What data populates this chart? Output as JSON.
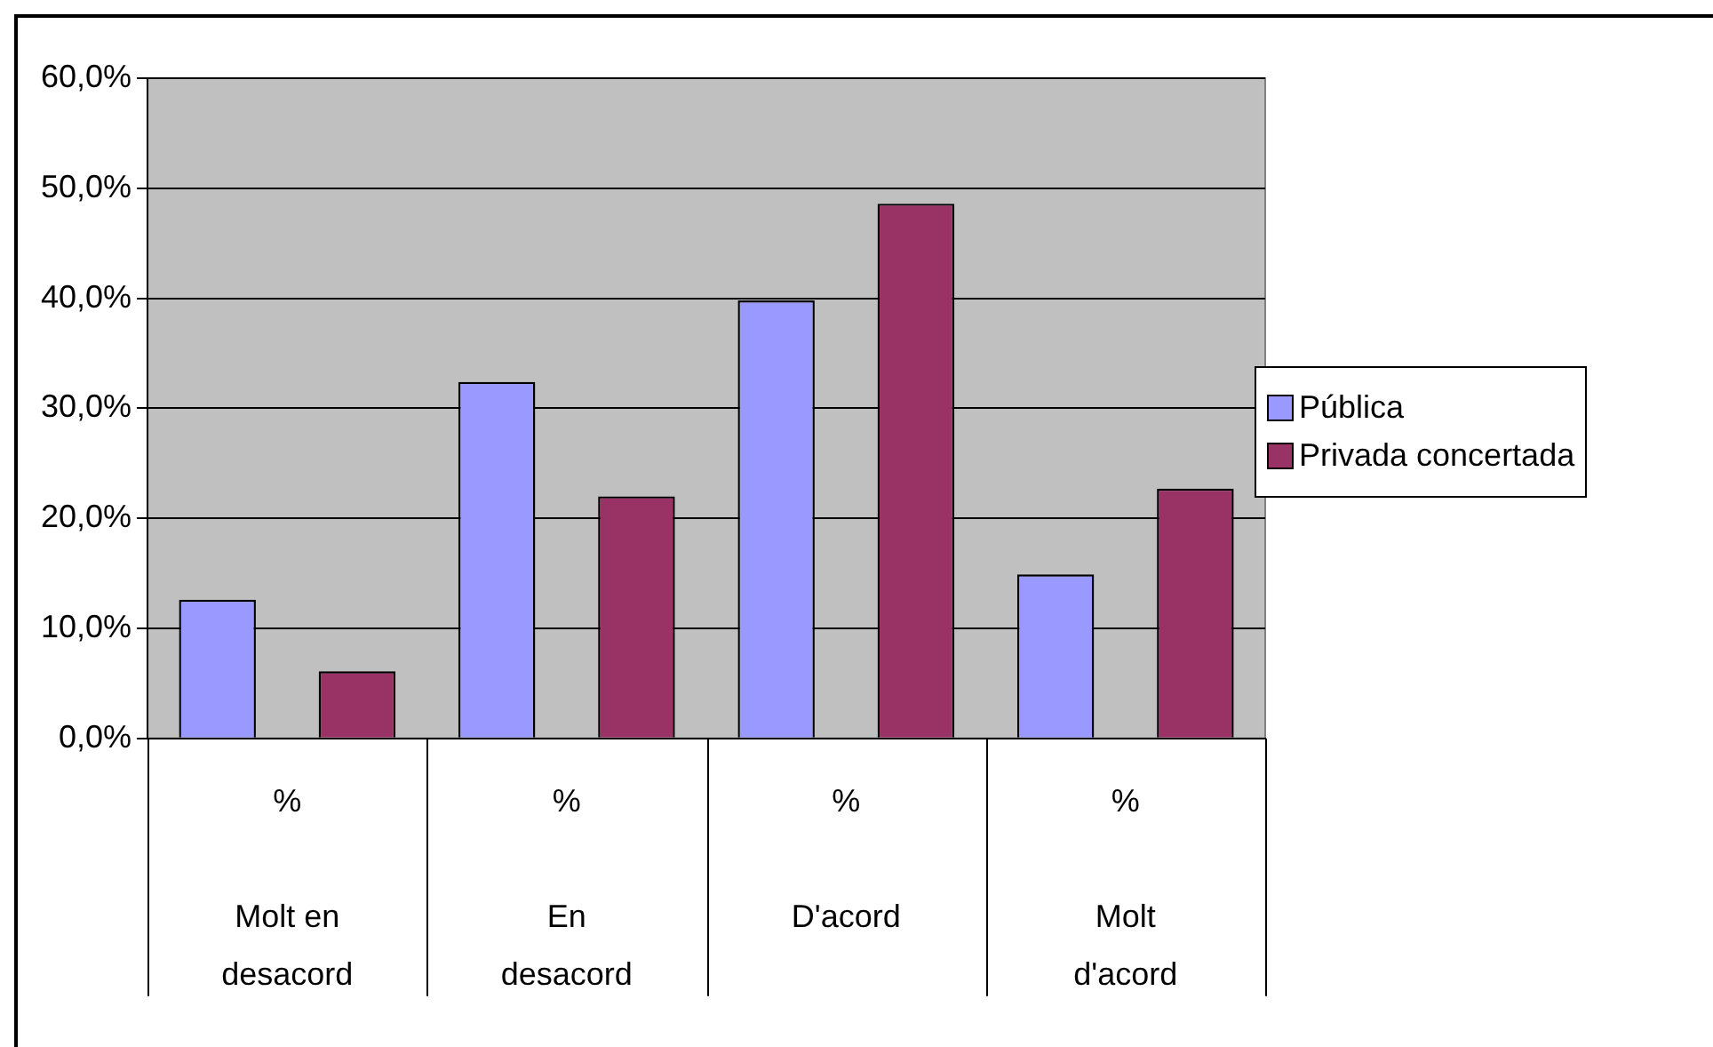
{
  "chart_data": {
    "type": "bar",
    "categories": [
      "%\nMolt en desacord",
      "%\nEn desacord",
      "%\nD'acord",
      "%\nMolt d'acord"
    ],
    "series": [
      {
        "name": "Pública",
        "color": "#9999ff",
        "values": [
          12.6,
          32.4,
          39.8,
          14.9
        ]
      },
      {
        "name": "Privada concertada",
        "color": "#993366",
        "values": [
          6.1,
          22.0,
          48.6,
          22.7
        ]
      }
    ],
    "ylim": [
      0,
      60
    ],
    "yticks": [
      {
        "value": 0,
        "label": "0,0%"
      },
      {
        "value": 10,
        "label": "10,0%"
      },
      {
        "value": 20,
        "label": "20,0%"
      },
      {
        "value": 30,
        "label": "30,0%"
      },
      {
        "value": 40,
        "label": "40,0%"
      },
      {
        "value": 50,
        "label": "50,0%"
      },
      {
        "value": 60,
        "label": "60,0%"
      }
    ],
    "grid": "y",
    "legend": "right"
  }
}
